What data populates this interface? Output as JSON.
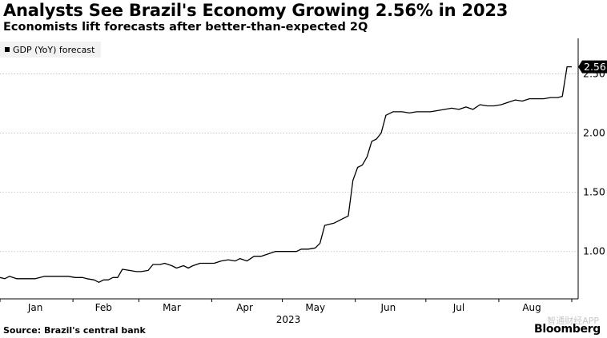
{
  "header": {
    "title": "Analysts See Brazil's Economy Growing 2.56% in 2023",
    "subtitle": "Economists lift forecasts after better-than-expected 2Q"
  },
  "footer": {
    "source": "Source: Brazil's central bank",
    "brand": "Bloomberg",
    "watermark": "智通财经APP"
  },
  "colors": {
    "line": "#000000",
    "grid": "#bbbbbb",
    "axis": "#000000",
    "legend_bg": "#f2f2f2"
  },
  "chart_data": {
    "type": "line",
    "title": "Analysts See Brazil's Economy Growing 2.56% in 2023",
    "subtitle": "Economists lift forecasts after better-than-expected 2Q",
    "xlabel": "2023",
    "ylabel": "",
    "x_unit": "day-of-year 2023",
    "xlim": [
      1,
      244
    ],
    "ylim": [
      0.6,
      2.8
    ],
    "grid": true,
    "legend": "top-left",
    "y_axis_side": "right",
    "y_ticks": [
      1.0,
      1.5,
      2.0,
      2.5
    ],
    "y_tick_labels": [
      "1.00",
      "1.50",
      "2.00",
      "2.50"
    ],
    "x_ticks": [
      {
        "label": "Jan",
        "x": 16
      },
      {
        "label": "Feb",
        "x": 45
      },
      {
        "label": "Mar",
        "x": 74
      },
      {
        "label": "Apr",
        "x": 105
      },
      {
        "label": "May",
        "x": 135
      },
      {
        "label": "Jun",
        "x": 166
      },
      {
        "label": "Jul",
        "x": 196
      },
      {
        "label": "Aug",
        "x": 227
      }
    ],
    "last_value_label": "2.56",
    "series": [
      {
        "name": "GDP (YoY) forecast",
        "x": [
          1,
          3,
          5,
          8,
          11,
          16,
          20,
          25,
          30,
          33,
          36,
          38,
          41,
          43,
          45,
          47,
          49,
          51,
          53,
          56,
          59,
          61,
          64,
          66,
          69,
          71,
          74,
          76,
          79,
          81,
          83,
          86,
          89,
          92,
          95,
          98,
          101,
          103,
          106,
          109,
          112,
          115,
          118,
          121,
          124,
          127,
          129,
          132,
          135,
          137,
          139,
          141,
          143,
          145,
          147,
          149,
          151,
          153,
          155,
          157,
          159,
          161,
          163,
          165,
          168,
          172,
          175,
          178,
          181,
          184,
          187,
          190,
          193,
          196,
          199,
          202,
          205,
          208,
          211,
          214,
          217,
          220,
          223,
          226,
          229,
          232,
          235,
          238,
          240,
          242,
          244
        ],
        "y": [
          0.78,
          0.77,
          0.79,
          0.77,
          0.77,
          0.77,
          0.79,
          0.79,
          0.79,
          0.78,
          0.78,
          0.77,
          0.76,
          0.74,
          0.76,
          0.76,
          0.78,
          0.78,
          0.85,
          0.84,
          0.83,
          0.83,
          0.84,
          0.89,
          0.89,
          0.9,
          0.88,
          0.86,
          0.88,
          0.86,
          0.88,
          0.9,
          0.9,
          0.9,
          0.92,
          0.93,
          0.92,
          0.94,
          0.92,
          0.96,
          0.96,
          0.98,
          1.0,
          1.0,
          1.0,
          1.0,
          1.02,
          1.02,
          1.03,
          1.07,
          1.22,
          1.23,
          1.24,
          1.26,
          1.28,
          1.3,
          1.6,
          1.71,
          1.73,
          1.8,
          1.93,
          1.95,
          2.0,
          2.15,
          2.18,
          2.18,
          2.17,
          2.18,
          2.18,
          2.18,
          2.19,
          2.2,
          2.21,
          2.2,
          2.22,
          2.2,
          2.24,
          2.23,
          2.23,
          2.24,
          2.26,
          2.28,
          2.27,
          2.29,
          2.29,
          2.29,
          2.3,
          2.3,
          2.31,
          2.56,
          2.56
        ]
      }
    ]
  }
}
